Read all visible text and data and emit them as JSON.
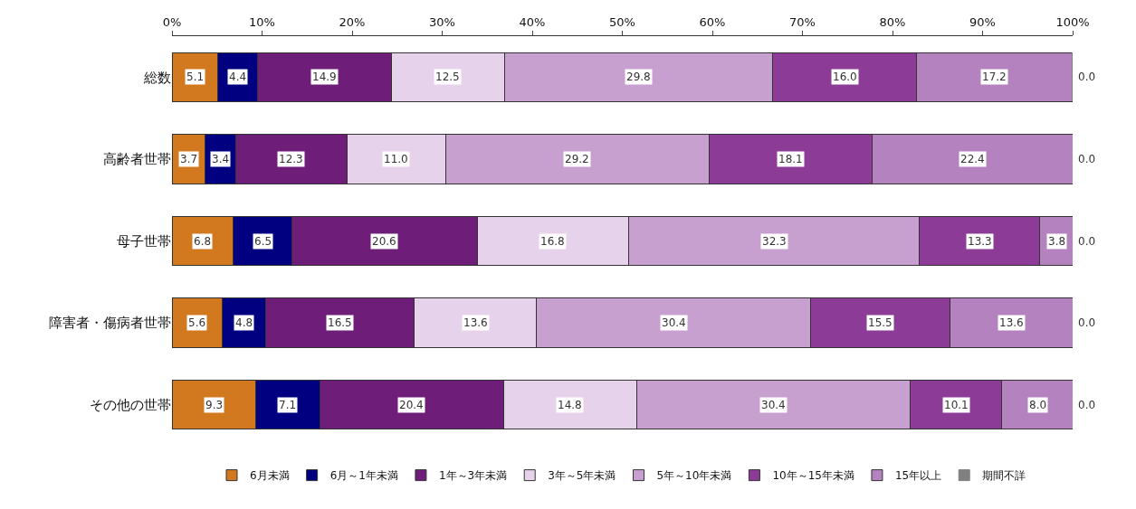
{
  "chart_data": {
    "type": "bar",
    "orientation": "horizontal",
    "stacked": true,
    "legend": "bottom",
    "categories": [
      "総数",
      "高齢者世帯",
      "母子世帯",
      "障害者・傷病者世帯",
      "その他の世帯"
    ],
    "xlim": [
      0,
      100
    ],
    "xticks": [
      {
        "value": 0,
        "label": "0%"
      },
      {
        "value": 10,
        "label": "10%"
      },
      {
        "value": 20,
        "label": "20%"
      },
      {
        "value": 30,
        "label": "30%"
      },
      {
        "value": 40,
        "label": "40%"
      },
      {
        "value": 50,
        "label": "50%"
      },
      {
        "value": 60,
        "label": "60%"
      },
      {
        "value": 70,
        "label": "70%"
      },
      {
        "value": 80,
        "label": "80%"
      },
      {
        "value": 90,
        "label": "90%"
      },
      {
        "value": 100,
        "label": "100%"
      }
    ],
    "series": [
      {
        "name": "6月未満",
        "color": "#d2781e",
        "values": [
          5.1,
          3.7,
          6.8,
          5.6,
          9.3
        ],
        "value_labels": [
          "5.1",
          "3.7",
          "6.8",
          "5.6",
          "9.3"
        ]
      },
      {
        "name": "6月～1年未満",
        "color": "#000080",
        "values": [
          4.4,
          3.4,
          6.5,
          4.8,
          7.1
        ],
        "value_labels": [
          "4.4",
          "3.4",
          "6.5",
          "4.8",
          "7.1"
        ]
      },
      {
        "name": "1年～3年未満",
        "color": "#6e1e78",
        "values": [
          14.9,
          12.3,
          20.6,
          16.5,
          20.4
        ],
        "value_labels": [
          "14.9",
          "12.3",
          "20.6",
          "16.5",
          "20.4"
        ]
      },
      {
        "name": "3年～5年未満",
        "color": "#e6d2ea",
        "values": [
          12.5,
          11.0,
          16.8,
          13.6,
          14.8
        ],
        "value_labels": [
          "12.5",
          "11.0",
          "16.8",
          "13.6",
          "14.8"
        ]
      },
      {
        "name": "5年～10年未満",
        "color": "#c8a0d0",
        "values": [
          29.8,
          29.2,
          32.3,
          30.4,
          30.4
        ],
        "value_labels": [
          "29.8",
          "29.2",
          "32.3",
          "30.4",
          "30.4"
        ]
      },
      {
        "name": "10年～15年未満",
        "color": "#8c3c96",
        "values": [
          16.0,
          18.1,
          13.3,
          15.5,
          10.1
        ],
        "value_labels": [
          "16.0",
          "18.1",
          "13.3",
          "15.5",
          "10.1"
        ]
      },
      {
        "name": "15年以上",
        "color": "#b482be",
        "values": [
          17.2,
          22.4,
          3.8,
          13.6,
          8.0
        ],
        "value_labels": [
          "17.2",
          "22.4",
          "3.8",
          "13.6",
          "8.0"
        ]
      },
      {
        "name": "期間不詳",
        "color": "#808080",
        "values": [
          0.0,
          0.0,
          0.0,
          0.0,
          0.0
        ],
        "value_labels": [
          "0.0",
          "0.0",
          "0.0",
          "0.0",
          "0.0"
        ]
      }
    ]
  }
}
